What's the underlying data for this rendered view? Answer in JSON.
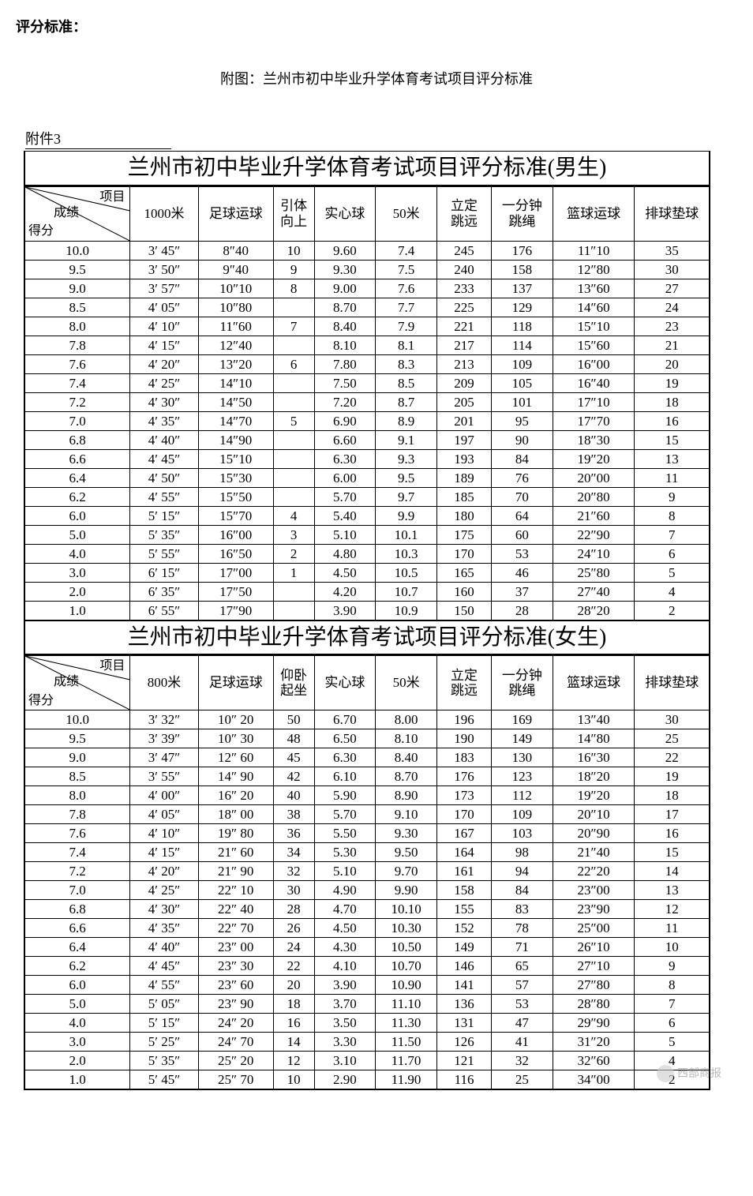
{
  "heading": "评分标准：",
  "subheading": "附图：兰州市初中毕业升学体育考试项目评分标准",
  "attachment_label": "附件3",
  "colors": {
    "background": "#ffffff",
    "text": "#000000",
    "border": "#000000",
    "watermark": "#888888"
  },
  "fonts": {
    "heading_family": "Microsoft YaHei",
    "body_family": "SimSun",
    "title_family": "KaiTi",
    "heading_size_pt": 14,
    "subheading_size_pt": 14,
    "title_size_pt": 21,
    "cell_size_pt": 13
  },
  "diag_header": {
    "top": "项目",
    "mid": "成绩",
    "bot": "得分"
  },
  "col_widths_pct": [
    15.5,
    10,
    11,
    6,
    9,
    9,
    8,
    9,
    12,
    11
  ],
  "tables": [
    {
      "title": "兰州市初中毕业升学体育考试项目评分标准(男生)",
      "columns": [
        "1000米",
        "足球运球",
        "引体向上",
        "实心球",
        "50米",
        "立定跳远",
        "一分钟跳绳",
        "篮球运球",
        "排球垫球"
      ],
      "rows": [
        [
          "10.0",
          "3′ 45″",
          "8″40",
          "10",
          "9.60",
          "7.4",
          "245",
          "176",
          "11″10",
          "35"
        ],
        [
          "9.5",
          "3′ 50″",
          "9″40",
          "9",
          "9.30",
          "7.5",
          "240",
          "158",
          "12″80",
          "30"
        ],
        [
          "9.0",
          "3′ 57″",
          "10″10",
          "8",
          "9.00",
          "7.6",
          "233",
          "137",
          "13″60",
          "27"
        ],
        [
          "8.5",
          "4′ 05″",
          "10″80",
          "",
          "8.70",
          "7.7",
          "225",
          "129",
          "14″60",
          "24"
        ],
        [
          "8.0",
          "4′ 10″",
          "11″60",
          "7",
          "8.40",
          "7.9",
          "221",
          "118",
          "15″10",
          "23"
        ],
        [
          "7.8",
          "4′ 15″",
          "12″40",
          "",
          "8.10",
          "8.1",
          "217",
          "114",
          "15″60",
          "21"
        ],
        [
          "7.6",
          "4′ 20″",
          "13″20",
          "6",
          "7.80",
          "8.3",
          "213",
          "109",
          "16″00",
          "20"
        ],
        [
          "7.4",
          "4′ 25″",
          "14″10",
          "",
          "7.50",
          "8.5",
          "209",
          "105",
          "16″40",
          "19"
        ],
        [
          "7.2",
          "4′ 30″",
          "14″50",
          "",
          "7.20",
          "8.7",
          "205",
          "101",
          "17″10",
          "18"
        ],
        [
          "7.0",
          "4′ 35″",
          "14″70",
          "5",
          "6.90",
          "8.9",
          "201",
          "95",
          "17″70",
          "16"
        ],
        [
          "6.8",
          "4′ 40″",
          "14″90",
          "",
          "6.60",
          "9.1",
          "197",
          "90",
          "18″30",
          "15"
        ],
        [
          "6.6",
          "4′ 45″",
          "15″10",
          "",
          "6.30",
          "9.3",
          "193",
          "84",
          "19″20",
          "13"
        ],
        [
          "6.4",
          "4′ 50″",
          "15″30",
          "",
          "6.00",
          "9.5",
          "189",
          "76",
          "20″00",
          "11"
        ],
        [
          "6.2",
          "4′ 55″",
          "15″50",
          "",
          "5.70",
          "9.7",
          "185",
          "70",
          "20″80",
          "9"
        ],
        [
          "6.0",
          "5′ 15″",
          "15″70",
          "4",
          "5.40",
          "9.9",
          "180",
          "64",
          "21″60",
          "8"
        ],
        [
          "5.0",
          "5′ 35″",
          "16″00",
          "3",
          "5.10",
          "10.1",
          "175",
          "60",
          "22″90",
          "7"
        ],
        [
          "4.0",
          "5′ 55″",
          "16″50",
          "2",
          "4.80",
          "10.3",
          "170",
          "53",
          "24″10",
          "6"
        ],
        [
          "3.0",
          "6′ 15″",
          "17″00",
          "1",
          "4.50",
          "10.5",
          "165",
          "46",
          "25″80",
          "5"
        ],
        [
          "2.0",
          "6′ 35″",
          "17″50",
          "",
          "4.20",
          "10.7",
          "160",
          "37",
          "27″40",
          "4"
        ],
        [
          "1.0",
          "6′ 55″",
          "17″90",
          "",
          "3.90",
          "10.9",
          "150",
          "28",
          "28″20",
          "2"
        ]
      ]
    },
    {
      "title": "兰州市初中毕业升学体育考试项目评分标准(女生)",
      "columns": [
        "800米",
        "足球运球",
        "仰卧起坐",
        "实心球",
        "50米",
        "立定跳远",
        "一分钟跳绳",
        "篮球运球",
        "排球垫球"
      ],
      "rows": [
        [
          "10.0",
          "3′ 32″",
          "10″ 20",
          "50",
          "6.70",
          "8.00",
          "196",
          "169",
          "13″40",
          "30"
        ],
        [
          "9.5",
          "3′ 39″",
          "10″ 30",
          "48",
          "6.50",
          "8.10",
          "190",
          "149",
          "14″80",
          "25"
        ],
        [
          "9.0",
          "3′ 47″",
          "12″ 60",
          "45",
          "6.30",
          "8.40",
          "183",
          "130",
          "16″30",
          "22"
        ],
        [
          "8.5",
          "3′ 55″",
          "14″ 90",
          "42",
          "6.10",
          "8.70",
          "176",
          "123",
          "18″20",
          "19"
        ],
        [
          "8.0",
          "4′ 00″",
          "16″ 20",
          "40",
          "5.90",
          "8.90",
          "173",
          "112",
          "19″20",
          "18"
        ],
        [
          "7.8",
          "4′ 05″",
          "18″ 00",
          "38",
          "5.70",
          "9.10",
          "170",
          "109",
          "20″10",
          "17"
        ],
        [
          "7.6",
          "4′ 10″",
          "19″ 80",
          "36",
          "5.50",
          "9.30",
          "167",
          "103",
          "20″90",
          "16"
        ],
        [
          "7.4",
          "4′ 15″",
          "21″ 60",
          "34",
          "5.30",
          "9.50",
          "164",
          "98",
          "21″40",
          "15"
        ],
        [
          "7.2",
          "4′ 20″",
          "21″ 90",
          "32",
          "5.10",
          "9.70",
          "161",
          "94",
          "22″20",
          "14"
        ],
        [
          "7.0",
          "4′ 25″",
          "22″ 10",
          "30",
          "4.90",
          "9.90",
          "158",
          "84",
          "23″00",
          "13"
        ],
        [
          "6.8",
          "4′ 30″",
          "22″ 40",
          "28",
          "4.70",
          "10.10",
          "155",
          "83",
          "23″90",
          "12"
        ],
        [
          "6.6",
          "4′ 35″",
          "22″ 70",
          "26",
          "4.50",
          "10.30",
          "152",
          "78",
          "25″00",
          "11"
        ],
        [
          "6.4",
          "4′ 40″",
          "23″ 00",
          "24",
          "4.30",
          "10.50",
          "149",
          "71",
          "26″10",
          "10"
        ],
        [
          "6.2",
          "4′ 45″",
          "23″ 30",
          "22",
          "4.10",
          "10.70",
          "146",
          "65",
          "27″10",
          "9"
        ],
        [
          "6.0",
          "4′ 55″",
          "23″ 60",
          "20",
          "3.90",
          "10.90",
          "141",
          "57",
          "27″80",
          "8"
        ],
        [
          "5.0",
          "5′ 05″",
          "23″ 90",
          "18",
          "3.70",
          "11.10",
          "136",
          "53",
          "28″80",
          "7"
        ],
        [
          "4.0",
          "5′ 15″",
          "24″ 20",
          "16",
          "3.50",
          "11.30",
          "131",
          "47",
          "29″90",
          "6"
        ],
        [
          "3.0",
          "5′ 25″",
          "24″ 70",
          "14",
          "3.30",
          "11.50",
          "126",
          "41",
          "31″20",
          "5"
        ],
        [
          "2.0",
          "5′ 35″",
          "25″ 20",
          "12",
          "3.10",
          "11.70",
          "121",
          "32",
          "32″60",
          "4"
        ],
        [
          "1.0",
          "5′ 45″",
          "25″ 70",
          "10",
          "2.90",
          "11.90",
          "116",
          "25",
          "34″00",
          "2"
        ]
      ]
    }
  ],
  "watermark": "西部商报"
}
